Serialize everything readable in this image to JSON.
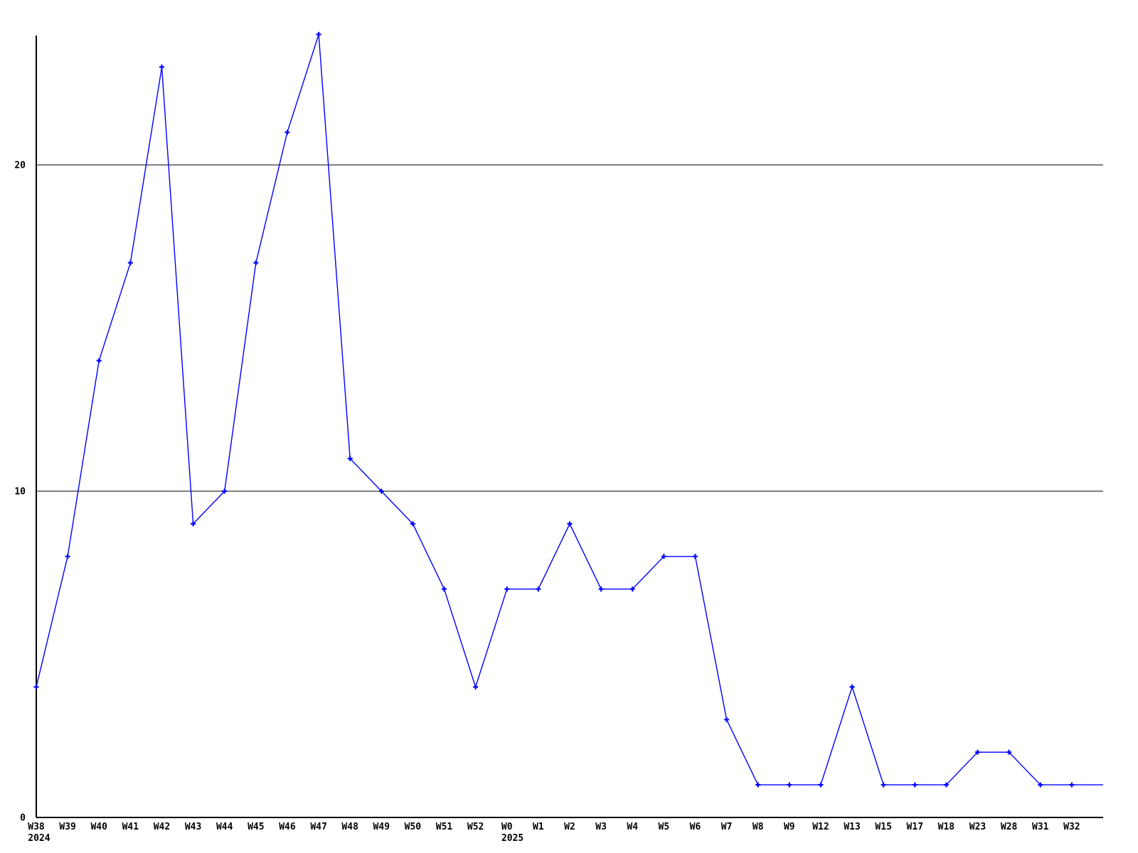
{
  "chart": {
    "background_color": "#ffffff",
    "axis_color": "#000000",
    "line_color": "#0000ff"
  },
  "chart_data": {
    "type": "line",
    "title": "",
    "xlabel": "",
    "ylabel": "",
    "legend": "none",
    "grid": "horizontal-only",
    "ylim": [
      0,
      24
    ],
    "y_ticks": [
      {
        "value": 0,
        "label": "0"
      },
      {
        "value": 10,
        "label": "10"
      },
      {
        "value": 20,
        "label": "20"
      }
    ],
    "gridline_values": [
      10,
      20
    ],
    "categories": [
      "W38",
      "W39",
      "W40",
      "W41",
      "W42",
      "W43",
      "W44",
      "W45",
      "W46",
      "W47",
      "W48",
      "W49",
      "W50",
      "W51",
      "W52",
      "W0",
      "W1",
      "W2",
      "W3",
      "W4",
      "W5",
      "W6",
      "W7",
      "W8",
      "W9",
      "W12",
      "W13",
      "W15",
      "W17",
      "W18",
      "W23",
      "W28",
      "W31",
      "W32",
      ""
    ],
    "values": [
      4,
      8,
      14,
      17,
      23,
      9,
      10,
      17,
      21,
      24,
      11,
      10,
      9,
      7,
      4,
      7,
      7,
      9,
      7,
      7,
      8,
      8,
      3,
      1,
      1,
      1,
      4,
      1,
      1,
      1,
      2,
      2,
      1,
      1,
      1
    ],
    "year_labels": [
      {
        "index": 0,
        "label": "2024"
      },
      {
        "index": 15,
        "label": "2025"
      }
    ],
    "series_color": "#0000ff",
    "marker": "plus"
  }
}
